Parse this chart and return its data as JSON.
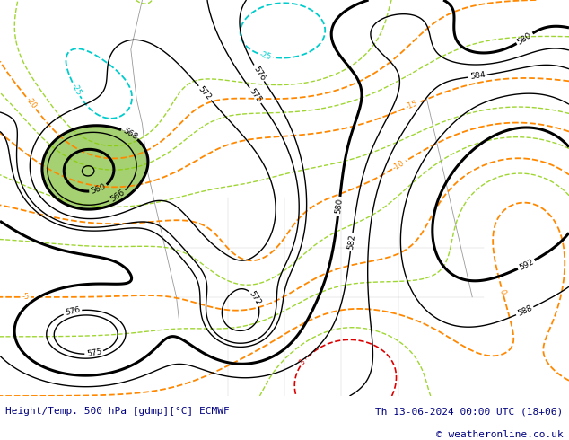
{
  "title_left": "Height/Temp. 500 hPa [gdmp][°C] ECMWF",
  "title_right": "Th 13-06-2024 00:00 UTC (18+06)",
  "copyright": "© weatheronline.co.uk",
  "bg_color": "#c8c8c8",
  "map_bg": "#d8d8d8",
  "green_color": [
    0.65,
    0.82,
    0.45,
    1.0
  ],
  "figsize": [
    6.34,
    4.9
  ],
  "dpi": 100,
  "bottom_bar_color": "#ffffff",
  "title_color": "#000080",
  "copyright_color": "#000080"
}
